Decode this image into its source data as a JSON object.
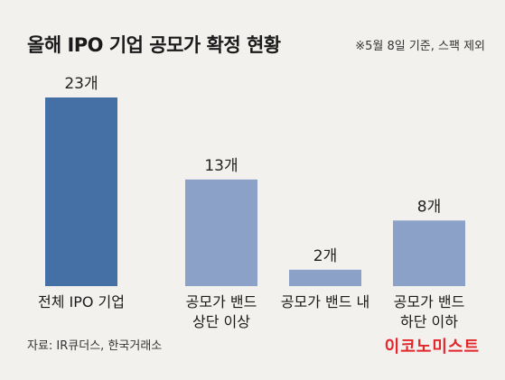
{
  "chart_data": {
    "type": "bar",
    "title": "올해 IPO 기업 공모가 확정 현황",
    "note": "※5월 8일 기준, 스팩 제외",
    "categories": [
      [
        "전체 IPO 기업"
      ],
      [
        "공모가 밴드",
        "상단 이상"
      ],
      [
        "공모가 밴드 내"
      ],
      [
        "공모가 밴드",
        "하단 이하"
      ]
    ],
    "values": [
      23,
      13,
      2,
      8
    ],
    "value_labels": [
      "23개",
      "13개",
      "2개",
      "8개"
    ],
    "bar_colors": [
      "#4470a6",
      "#8ba1c8",
      "#8ba1c8",
      "#8ba1c8"
    ],
    "ylim": [
      0,
      23
    ]
  },
  "footer": {
    "source": "자료: IR큐더스, 한국거래소",
    "brand": "이코노미스트",
    "brand_color": "#e3262a"
  }
}
